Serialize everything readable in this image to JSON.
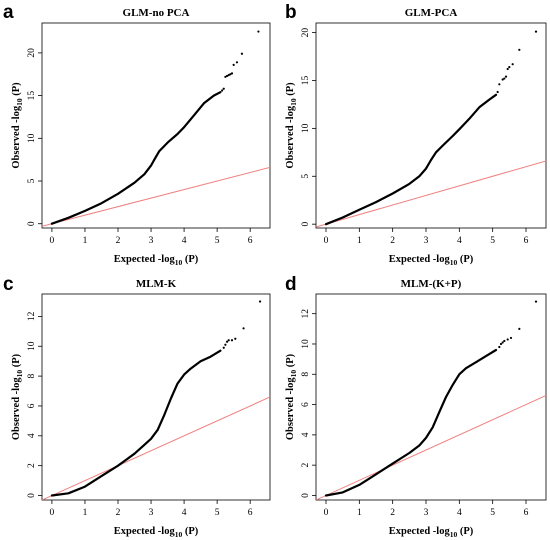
{
  "chart_data": [
    {
      "type": "scatter",
      "panel": "a",
      "title": "GLM-no PCA",
      "xlabel": {
        "prefix": "Expected -log",
        "sub": "10",
        "suffix": " (P)"
      },
      "ylabel": {
        "prefix": "Observed -log",
        "sub": "10",
        "suffix": " (P)"
      },
      "xlim": [
        -0.3,
        6.6
      ],
      "ylim": [
        -0.5,
        23.5
      ],
      "xticks": [
        "0",
        "1",
        "2",
        "3",
        "4",
        "5",
        "6"
      ],
      "yticks": [
        "0",
        "5",
        "10",
        "15",
        "20"
      ],
      "reference_line": {
        "type": "diagonal",
        "slope": 1,
        "color": "#f08080"
      },
      "series": [
        {
          "type": "line",
          "color": "#000000",
          "x": [
            0.0,
            0.5,
            1.0,
            1.5,
            2.0,
            2.5,
            2.8,
            3.0,
            3.1,
            3.25,
            3.5,
            3.8,
            4.0,
            4.3,
            4.6,
            4.9,
            5.1
          ],
          "y": [
            0.0,
            0.7,
            1.5,
            2.4,
            3.5,
            4.8,
            5.8,
            6.8,
            7.5,
            8.5,
            9.5,
            10.5,
            11.3,
            12.7,
            14.1,
            15.0,
            15.4
          ]
        },
        {
          "type": "points",
          "color": "#000000",
          "x": [
            5.15,
            5.2,
            5.25,
            5.3,
            5.35,
            5.4,
            5.45,
            5.5,
            5.6,
            5.75,
            6.25
          ],
          "y": [
            15.6,
            15.8,
            17.2,
            17.3,
            17.4,
            17.5,
            17.6,
            18.6,
            18.9,
            19.9,
            22.5
          ]
        }
      ]
    },
    {
      "type": "scatter",
      "panel": "b",
      "title": "GLM-PCA",
      "xlabel": {
        "prefix": "Expected -log",
        "sub": "10",
        "suffix": " (P)"
      },
      "ylabel": {
        "prefix": "Observed -log",
        "sub": "10",
        "suffix": " (P)"
      },
      "xlim": [
        -0.3,
        6.6
      ],
      "ylim": [
        -0.4,
        21.0
      ],
      "xticks": [
        "0",
        "1",
        "2",
        "3",
        "4",
        "5",
        "6"
      ],
      "yticks": [
        "0",
        "5",
        "10",
        "15",
        "20"
      ],
      "reference_line": {
        "type": "diagonal",
        "slope": 1,
        "color": "#f08080"
      },
      "series": [
        {
          "type": "line",
          "color": "#000000",
          "x": [
            0.0,
            0.5,
            1.0,
            1.5,
            2.0,
            2.5,
            2.8,
            3.0,
            3.15,
            3.3,
            3.5,
            3.8,
            4.0,
            4.3,
            4.6,
            4.9,
            5.1
          ],
          "y": [
            0.0,
            0.7,
            1.5,
            2.3,
            3.2,
            4.2,
            5.0,
            5.8,
            6.7,
            7.5,
            8.2,
            9.2,
            9.9,
            11.0,
            12.2,
            13.0,
            13.5
          ]
        },
        {
          "type": "points",
          "color": "#000000",
          "x": [
            5.15,
            5.2,
            5.3,
            5.35,
            5.4,
            5.45,
            5.5,
            5.6,
            5.8,
            6.3
          ],
          "y": [
            13.8,
            14.6,
            15.1,
            15.2,
            15.4,
            16.2,
            16.4,
            16.7,
            18.2,
            20.1
          ]
        }
      ]
    },
    {
      "type": "scatter",
      "panel": "c",
      "title": "MLM-K",
      "xlabel": {
        "prefix": "Expected -log",
        "sub": "10",
        "suffix": " (P)"
      },
      "ylabel": {
        "prefix": "Observed -log",
        "sub": "10",
        "suffix": " (P)"
      },
      "xlim": [
        -0.3,
        6.6
      ],
      "ylim": [
        -0.3,
        13.5
      ],
      "xticks": [
        "0",
        "1",
        "2",
        "3",
        "4",
        "5",
        "6"
      ],
      "yticks": [
        "0",
        "2",
        "4",
        "6",
        "8",
        "10",
        "12"
      ],
      "reference_line": {
        "type": "diagonal",
        "slope": 1,
        "color": "#f08080"
      },
      "series": [
        {
          "type": "line",
          "color": "#000000",
          "x": [
            0.0,
            0.5,
            1.0,
            1.5,
            2.0,
            2.5,
            2.8,
            3.0,
            3.2,
            3.4,
            3.6,
            3.8,
            4.0,
            4.2,
            4.5,
            4.8,
            5.1
          ],
          "y": [
            0.0,
            0.15,
            0.6,
            1.3,
            2.0,
            2.8,
            3.4,
            3.8,
            4.4,
            5.4,
            6.5,
            7.5,
            8.1,
            8.5,
            9.0,
            9.3,
            9.7
          ]
        },
        {
          "type": "points",
          "color": "#000000",
          "x": [
            5.2,
            5.25,
            5.3,
            5.35,
            5.45,
            5.55,
            5.8,
            6.3
          ],
          "y": [
            9.9,
            10.1,
            10.3,
            10.4,
            10.4,
            10.5,
            11.2,
            13.0
          ]
        }
      ]
    },
    {
      "type": "scatter",
      "panel": "d",
      "title": "MLM-(K+P)",
      "xlabel": {
        "prefix": "Expected -log",
        "sub": "10",
        "suffix": " (P)"
      },
      "ylabel": {
        "prefix": "Observed -log",
        "sub": "10",
        "suffix": " (P)"
      },
      "xlim": [
        -0.3,
        6.6
      ],
      "ylim": [
        -0.3,
        13.3
      ],
      "xticks": [
        "0",
        "1",
        "2",
        "3",
        "4",
        "5",
        "6"
      ],
      "yticks": [
        "0",
        "2",
        "4",
        "6",
        "8",
        "10",
        "12"
      ],
      "reference_line": {
        "type": "diagonal",
        "slope": 1,
        "color": "#f08080"
      },
      "series": [
        {
          "type": "line",
          "color": "#000000",
          "x": [
            0.0,
            0.5,
            1.0,
            1.5,
            2.0,
            2.5,
            2.8,
            3.0,
            3.2,
            3.4,
            3.6,
            3.8,
            4.0,
            4.2,
            4.5,
            4.8,
            5.1
          ],
          "y": [
            0.0,
            0.2,
            0.7,
            1.4,
            2.1,
            2.8,
            3.3,
            3.8,
            4.5,
            5.5,
            6.5,
            7.3,
            8.0,
            8.4,
            8.8,
            9.2,
            9.6
          ]
        },
        {
          "type": "points",
          "color": "#000000",
          "x": [
            5.2,
            5.25,
            5.3,
            5.35,
            5.45,
            5.55,
            5.8,
            6.3
          ],
          "y": [
            9.8,
            10.0,
            10.1,
            10.2,
            10.3,
            10.4,
            11.0,
            12.8
          ]
        }
      ]
    }
  ]
}
